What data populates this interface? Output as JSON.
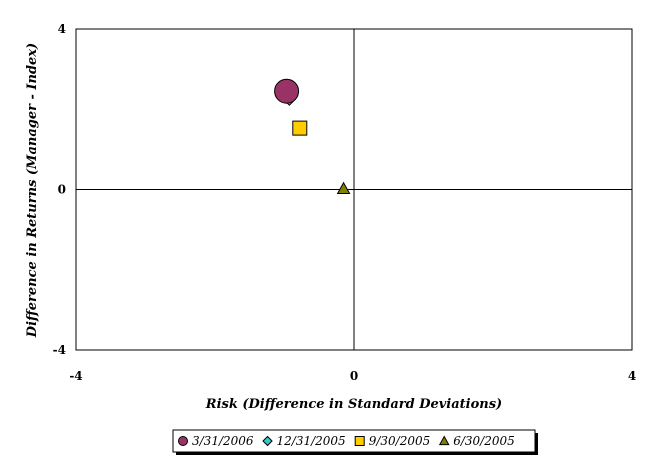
{
  "chart_data": {
    "type": "scatter",
    "title": "",
    "xlabel": "Risk (Difference in Standard Deviations)",
    "ylabel": "Difference in Returns (Manager - Index)",
    "xlim": [
      -4,
      4
    ],
    "ylim": [
      -4,
      4
    ],
    "xticks": [
      -4,
      0,
      4
    ],
    "yticks": [
      -4,
      0,
      4
    ],
    "x_tick_labels": [
      "-4",
      "0",
      "4"
    ],
    "y_tick_labels": [
      "-4",
      "0",
      "4"
    ],
    "grid": false,
    "reference_lines": {
      "x": 0,
      "y": 0
    },
    "legend_position": "bottom",
    "series": [
      {
        "name": "3/31/2006",
        "marker": "circle",
        "color": "#993366",
        "points": [
          {
            "x": -0.97,
            "y": 2.45
          }
        ]
      },
      {
        "name": "12/31/2005",
        "marker": "diamond",
        "color": "#33CCCC",
        "points": [
          {
            "x": -0.93,
            "y": 2.25
          }
        ]
      },
      {
        "name": "9/30/2005",
        "marker": "square",
        "color": "#FFCC00",
        "points": [
          {
            "x": -0.78,
            "y": 1.53
          }
        ]
      },
      {
        "name": "6/30/2005",
        "marker": "triangle",
        "color": "#808000",
        "points": [
          {
            "x": -0.15,
            "y": 0.02
          }
        ]
      }
    ]
  }
}
